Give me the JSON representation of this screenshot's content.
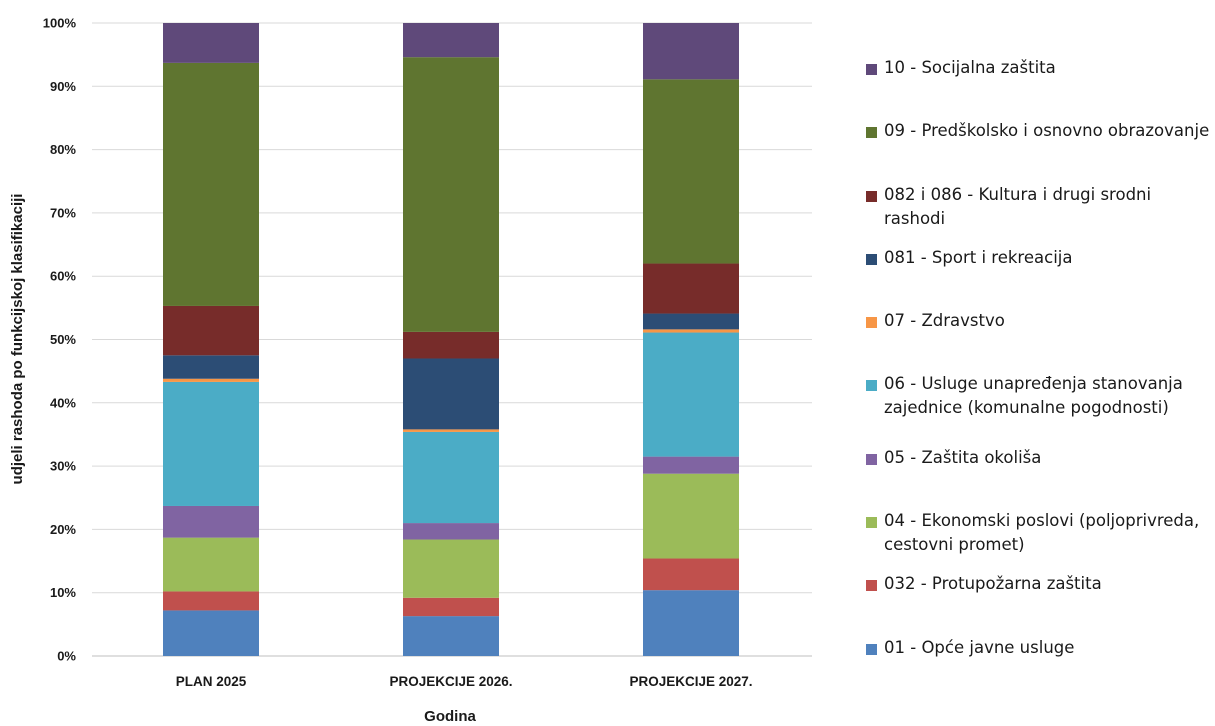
{
  "chart_data": {
    "type": "bar",
    "stacked": true,
    "normalized": true,
    "categories": [
      "PLAN 2025",
      "PROJEKCIJE 2026.",
      "PROJEKCIJE 2027."
    ],
    "xlabel": "Godina",
    "ylabel": "udjeli rashoda po funkcijskoj klasifikaciji",
    "ylim": [
      0,
      100
    ],
    "yticks": [
      "0%",
      "10%",
      "20%",
      "30%",
      "40%",
      "50%",
      "60%",
      "70%",
      "80%",
      "90%",
      "100%"
    ],
    "grid": true,
    "legend_position": "right",
    "series": [
      {
        "name": "01 - Opće javne usluge",
        "color": "#4f81bd",
        "values": [
          7.2,
          6.3,
          10.4
        ]
      },
      {
        "name": "032 - Protupožarna zaštita",
        "color": "#c0504d",
        "values": [
          3.0,
          2.9,
          5.0
        ]
      },
      {
        "name": "04 - Ekonomski poslovi (poljoprivreda, cestovni promet)",
        "color": "#9bbb59",
        "values": [
          8.5,
          9.2,
          13.4
        ]
      },
      {
        "name": "05 - Zaštita okoliša",
        "color": "#8064a2",
        "values": [
          5.0,
          2.6,
          2.7
        ]
      },
      {
        "name": "06 - Usluge unapređenja stanovanja zajednice  (komunalne pogodnosti)",
        "color": "#4bacc6",
        "values": [
          19.6,
          14.4,
          19.6
        ]
      },
      {
        "name": "07 - Zdravstvo",
        "color": "#f79646",
        "values": [
          0.5,
          0.4,
          0.5
        ]
      },
      {
        "name": "081 - Sport i rekreacija",
        "color": "#2c4d75",
        "values": [
          3.7,
          11.2,
          2.5
        ]
      },
      {
        "name": "082 i 086 - Kultura i drugi srodni rashodi",
        "color": "#772c2a",
        "values": [
          7.8,
          4.2,
          7.9
        ]
      },
      {
        "name": "09 - Predškolsko i osnovno obrazovanje",
        "color": "#5f7530",
        "values": [
          38.4,
          43.4,
          29.1
        ]
      },
      {
        "name": "10 - Socijalna zaštita",
        "color": "#5f497a",
        "values": [
          6.3,
          5.4,
          8.9
        ]
      }
    ]
  }
}
